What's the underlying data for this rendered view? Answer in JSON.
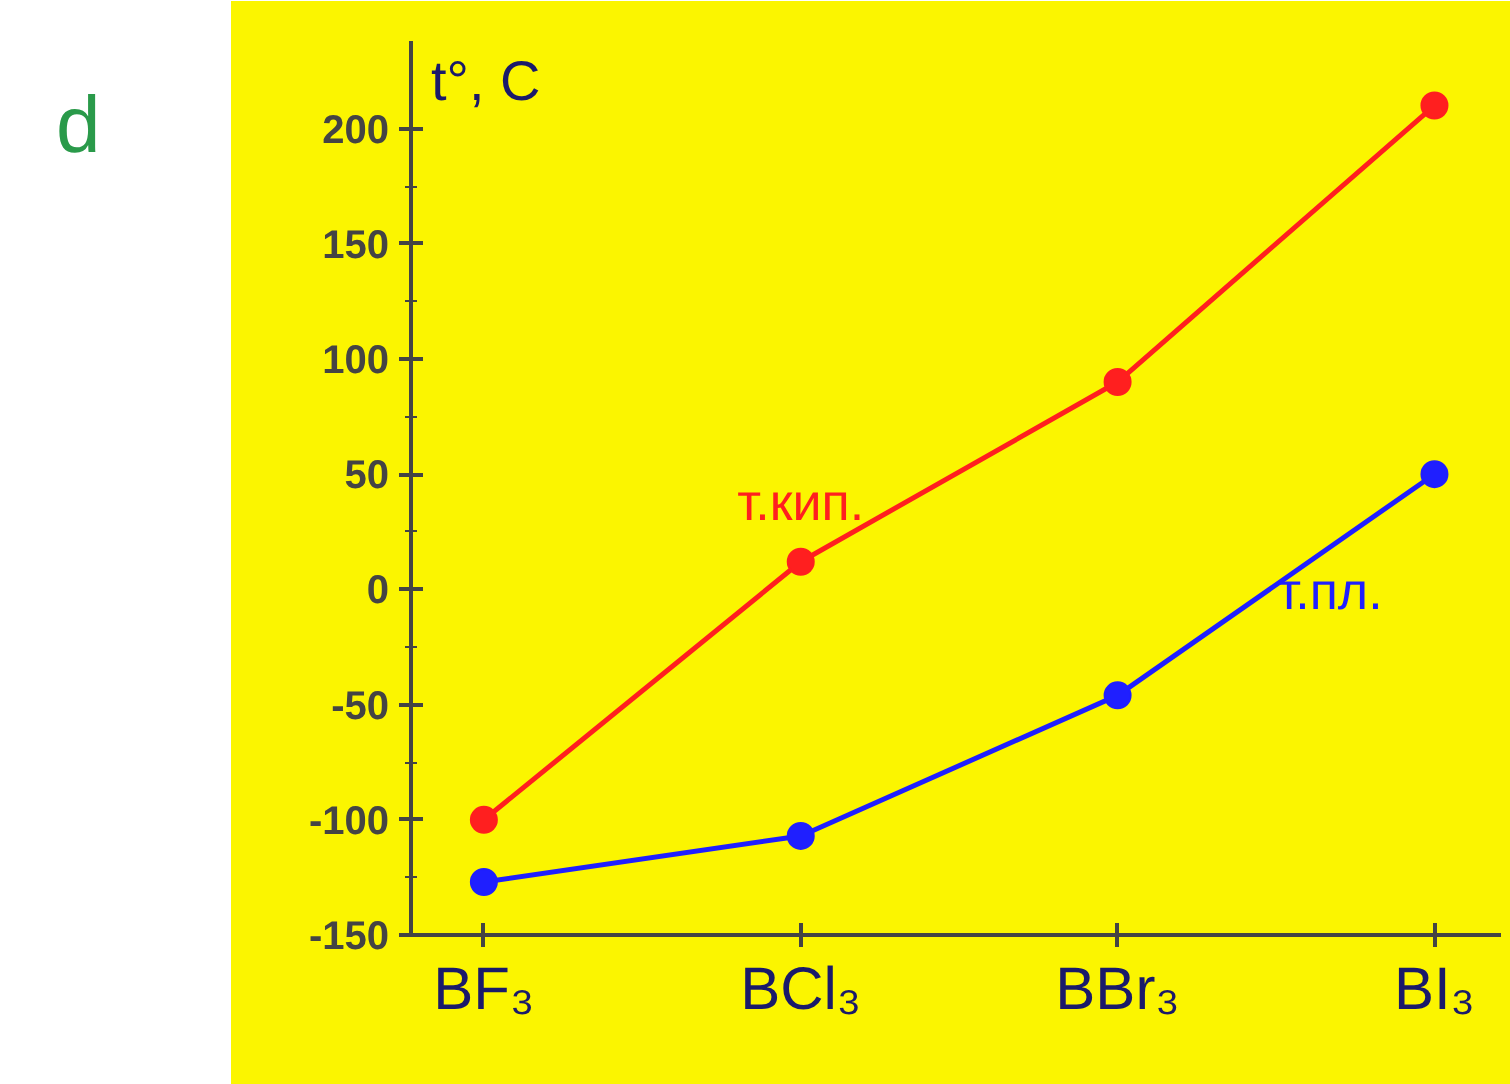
{
  "chart_data": {
    "type": "line",
    "ylabel": "t°, C",
    "categories": [
      "BF₃",
      "BCl₃",
      "BBr₃",
      "BI₃"
    ],
    "series": [
      {
        "name": "т.кип.",
        "color": "#ff1f1f",
        "values": [
          -100,
          12,
          90,
          210
        ]
      },
      {
        "name": "т.пл.",
        "color": "#1f1fff",
        "values": [
          -127,
          -107,
          -46,
          50
        ]
      }
    ],
    "ylim": [
      -150,
      238
    ],
    "yticks": [
      -150,
      -100,
      -50,
      0,
      50,
      100,
      150,
      200
    ],
    "marker": "circle",
    "line_style": "solid",
    "grid": false,
    "annotations": [
      "d"
    ]
  }
}
